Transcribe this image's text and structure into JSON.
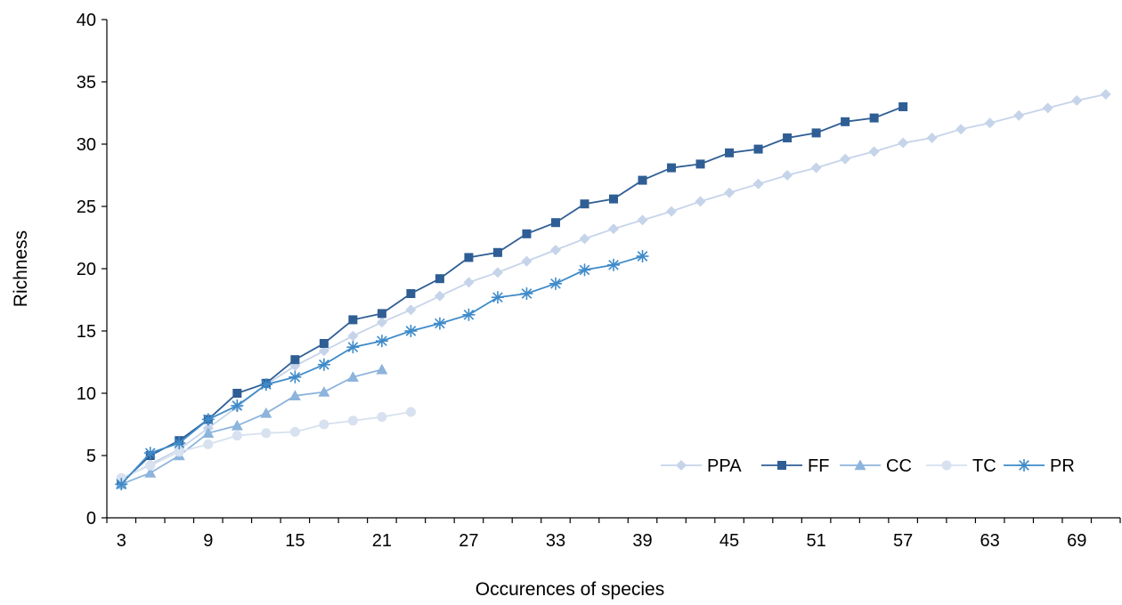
{
  "chart_data": {
    "type": "line",
    "xlabel": "Occurences of species",
    "ylabel": "Richness",
    "ylim": [
      0,
      40
    ],
    "y_ticks": [
      0,
      5,
      10,
      15,
      20,
      25,
      30,
      35,
      40
    ],
    "x_range": [
      2,
      72
    ],
    "x_tick_labels": [
      "3",
      "9",
      "15",
      "21",
      "27",
      "33",
      "39",
      "45",
      "51",
      "57",
      "63",
      "69"
    ],
    "grid": false,
    "legend_position": "bottom-right",
    "series": [
      {
        "name": "PPA",
        "color": "#c6d4ea",
        "marker": "diamond",
        "x": [
          3,
          5,
          7,
          9,
          11,
          13,
          15,
          17,
          19,
          21,
          23,
          25,
          27,
          29,
          31,
          33,
          35,
          37,
          39,
          41,
          43,
          45,
          47,
          49,
          51,
          53,
          55,
          57,
          59,
          61,
          63,
          65,
          67,
          69,
          71
        ],
        "y": [
          3.1,
          4.3,
          5.5,
          7.2,
          8.9,
          10.7,
          12.2,
          13.4,
          14.6,
          15.7,
          16.7,
          17.8,
          18.9,
          19.7,
          20.6,
          21.5,
          22.4,
          23.2,
          23.9,
          24.6,
          25.4,
          26.1,
          26.8,
          27.5,
          28.1,
          28.8,
          29.4,
          30.1,
          30.5,
          31.2,
          31.7,
          32.3,
          32.9,
          33.5,
          34.0
        ]
      },
      {
        "name": "FF",
        "color": "#2f5e95",
        "marker": "square",
        "x": [
          3,
          5,
          7,
          9,
          11,
          13,
          15,
          17,
          19,
          21,
          23,
          25,
          27,
          29,
          31,
          33,
          35,
          37,
          39,
          41,
          43,
          45,
          47,
          49,
          51,
          53,
          55,
          57
        ],
        "y": [
          2.8,
          5.0,
          6.2,
          7.9,
          10.0,
          10.8,
          12.7,
          14.0,
          15.9,
          16.4,
          18.0,
          19.2,
          20.9,
          21.3,
          22.8,
          23.7,
          25.2,
          25.6,
          27.1,
          28.1,
          28.4,
          29.3,
          29.6,
          30.5,
          30.9,
          31.8,
          32.1,
          33.0
        ]
      },
      {
        "name": "CC",
        "color": "#8db4dc",
        "marker": "triangle",
        "x": [
          3,
          5,
          7,
          9,
          11,
          13,
          15,
          17,
          19,
          21
        ],
        "y": [
          2.7,
          3.6,
          5.0,
          6.8,
          7.4,
          8.4,
          9.8,
          10.1,
          11.3,
          11.9
        ]
      },
      {
        "name": "TC",
        "color": "#d7e1ef",
        "marker": "circle",
        "x": [
          3,
          5,
          7,
          9,
          11,
          13,
          15,
          17,
          19,
          21,
          23
        ],
        "y": [
          3.2,
          4.2,
          5.3,
          5.9,
          6.6,
          6.8,
          6.9,
          7.5,
          7.8,
          8.1,
          8.5
        ]
      },
      {
        "name": "PR",
        "color": "#3f8bc9",
        "marker": "star",
        "x": [
          3,
          5,
          7,
          9,
          11,
          13,
          15,
          17,
          19,
          21,
          23,
          25,
          27,
          29,
          31,
          33,
          35,
          37,
          39
        ],
        "y": [
          2.7,
          5.2,
          6.0,
          7.9,
          9.0,
          10.7,
          11.3,
          12.3,
          13.7,
          14.2,
          15.0,
          15.6,
          16.3,
          17.7,
          18.0,
          18.8,
          19.9,
          20.3,
          21.0
        ]
      }
    ]
  }
}
